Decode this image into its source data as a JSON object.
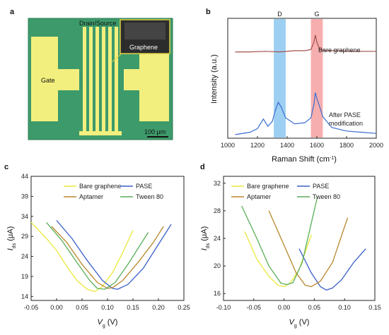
{
  "panels": {
    "a": {
      "letter": "a",
      "labels": {
        "drain_source": "Drain/Source",
        "gate": "Gate",
        "graphene": "Graphene",
        "scale_bar": "100 μm"
      },
      "colors": {
        "background": "#3d9a6b",
        "electrode": "#f3ef7e",
        "inset": "#2c2c2c"
      }
    },
    "b": {
      "letter": "b",
      "band_labels": {
        "d": "D",
        "g": "G"
      },
      "curve_labels": {
        "bare": "Bare graphene",
        "after_line1": "After PASE",
        "after_line2": "modification"
      },
      "axis": {
        "ylabel": "Intensity (a.u.)",
        "xlabel": "Raman Shift (cm",
        "xlabel_sup": "-1",
        "xlabel_end": ")"
      },
      "colors": {
        "bare": "#a0504b",
        "after": "#3b6fd1",
        "d_band": "#4aa8e8",
        "g_band": "#ef6b6b"
      }
    },
    "c": {
      "letter": "c",
      "axis": {
        "ylabel_main": "I",
        "ylabel_sub": "ds",
        "ylabel_unit": " (μA)",
        "xlabel_main": "V",
        "xlabel_sub": "g",
        "xlabel_unit": " (V)"
      },
      "legend": [
        "Bare graphene",
        "PASE",
        "Aptamer",
        "Tween 80"
      ]
    },
    "d": {
      "letter": "d",
      "axis": {
        "ylabel_main": "I",
        "ylabel_sub": "ds",
        "ylabel_unit": " (μA)",
        "xlabel_main": "V",
        "xlabel_sub": "g",
        "xlabel_unit": " (V)"
      },
      "legend": [
        "Bare graphene",
        "PASE",
        "Aptamer",
        "Tween 80"
      ]
    }
  },
  "series_colors": {
    "bare": "#e8e83a",
    "pase": "#3a5fc9",
    "aptamer": "#b8862b",
    "tween": "#5aae58"
  },
  "chart_data": [
    {
      "type": "line",
      "panel": "b",
      "xlabel": "Raman Shift (cm-1)",
      "ylabel": "Intensity (a.u.)",
      "xlim": [
        1000,
        2000
      ],
      "xticks": [
        "1000",
        "1200",
        "1400",
        "1600",
        "1800",
        "2000"
      ],
      "highlight_bands": [
        {
          "label": "D",
          "range": [
            1310,
            1390
          ]
        },
        {
          "label": "G",
          "range": [
            1560,
            1640
          ]
        }
      ],
      "series": [
        {
          "name": "Bare graphene",
          "x": [
            1050,
            1150,
            1250,
            1350,
            1450,
            1520,
            1560,
            1580,
            1590,
            1600,
            1620,
            1660,
            1750,
            1850,
            2000
          ],
          "y": [
            0.72,
            0.72,
            0.725,
            0.72,
            0.73,
            0.73,
            0.74,
            0.8,
            0.86,
            0.8,
            0.74,
            0.73,
            0.73,
            0.725,
            0.725
          ]
        },
        {
          "name": "After PASE modification",
          "x": [
            1050,
            1150,
            1200,
            1240,
            1270,
            1300,
            1320,
            1340,
            1360,
            1390,
            1450,
            1520,
            1560,
            1580,
            1590,
            1600,
            1620,
            1640,
            1700,
            1800,
            1900,
            2000
          ],
          "y": [
            0.03,
            0.05,
            0.08,
            0.16,
            0.1,
            0.14,
            0.23,
            0.3,
            0.26,
            0.17,
            0.12,
            0.13,
            0.17,
            0.28,
            0.38,
            0.33,
            0.26,
            0.18,
            0.09,
            0.06,
            0.05,
            0.04
          ]
        }
      ]
    },
    {
      "type": "line",
      "panel": "c",
      "xlabel": "Vg (V)",
      "ylabel": "Ids (μA)",
      "xlim": [
        -0.05,
        0.25
      ],
      "ylim": [
        13,
        44
      ],
      "xticks": [
        "-0.05",
        "0.00",
        "0.05",
        "0.10",
        "0.15",
        "0.20",
        "0.25"
      ],
      "yticks": [
        "14",
        "19",
        "24",
        "29",
        "34",
        "39",
        "44"
      ],
      "series": [
        {
          "name": "Bare graphene",
          "x": [
            -0.05,
            -0.02,
            0.0,
            0.02,
            0.04,
            0.06,
            0.075,
            0.09,
            0.11,
            0.13,
            0.15
          ],
          "y": [
            32.5,
            28.5,
            25.5,
            21.5,
            18.0,
            15.8,
            15.2,
            16.5,
            20.0,
            25.0,
            30.5
          ]
        },
        {
          "name": "PASE",
          "x": [
            0.0,
            0.03,
            0.06,
            0.09,
            0.11,
            0.12,
            0.14,
            0.17,
            0.2,
            0.225
          ],
          "y": [
            33.0,
            28.5,
            23.0,
            18.0,
            16.0,
            15.8,
            17.0,
            21.0,
            27.0,
            32.0
          ]
        },
        {
          "name": "Aptamer",
          "x": [
            -0.01,
            0.02,
            0.05,
            0.08,
            0.1,
            0.11,
            0.13,
            0.16,
            0.19,
            0.21
          ],
          "y": [
            31.5,
            27.5,
            22.0,
            17.5,
            16.0,
            16.2,
            18.0,
            22.5,
            27.5,
            31.5
          ]
        },
        {
          "name": "Tween 80",
          "x": [
            -0.02,
            0.01,
            0.04,
            0.065,
            0.08,
            0.095,
            0.115,
            0.14,
            0.165,
            0.18
          ],
          "y": [
            32.5,
            28.0,
            22.5,
            18.0,
            16.0,
            15.8,
            17.5,
            22.0,
            27.0,
            30.0
          ]
        }
      ]
    },
    {
      "type": "line",
      "panel": "d",
      "xlabel": "Vg (V)",
      "ylabel": "Ids (μA)",
      "xlim": [
        -0.1,
        0.15
      ],
      "ylim": [
        15,
        33
      ],
      "xticks": [
        "-0.10",
        "-0.05",
        "0.00",
        "0.05",
        "0.10",
        "0.15"
      ],
      "yticks": [
        "16",
        "20",
        "24",
        "28",
        "32"
      ],
      "series": [
        {
          "name": "Bare graphene",
          "x": [
            -0.065,
            -0.045,
            -0.025,
            -0.01,
            0.0,
            0.01,
            0.025,
            0.045
          ],
          "y": [
            25.0,
            21.0,
            18.5,
            17.2,
            17.0,
            17.5,
            19.5,
            24.5
          ]
        },
        {
          "name": "PASE",
          "x": [
            0.025,
            0.045,
            0.06,
            0.07,
            0.08,
            0.095,
            0.115,
            0.135
          ],
          "y": [
            22.5,
            19.0,
            17.0,
            16.5,
            16.8,
            18.0,
            20.5,
            22.5
          ]
        },
        {
          "name": "Aptamer",
          "x": [
            -0.025,
            0.0,
            0.02,
            0.035,
            0.045,
            0.06,
            0.08,
            0.105
          ],
          "y": [
            28.0,
            23.0,
            19.0,
            17.2,
            17.0,
            17.8,
            20.5,
            27.0
          ]
        },
        {
          "name": "Tween 80",
          "x": [
            -0.07,
            -0.045,
            -0.025,
            -0.005,
            0.005,
            0.015,
            0.03,
            0.055
          ],
          "y": [
            28.7,
            24.0,
            20.0,
            17.5,
            17.3,
            17.6,
            20.5,
            30.0
          ]
        }
      ]
    }
  ]
}
